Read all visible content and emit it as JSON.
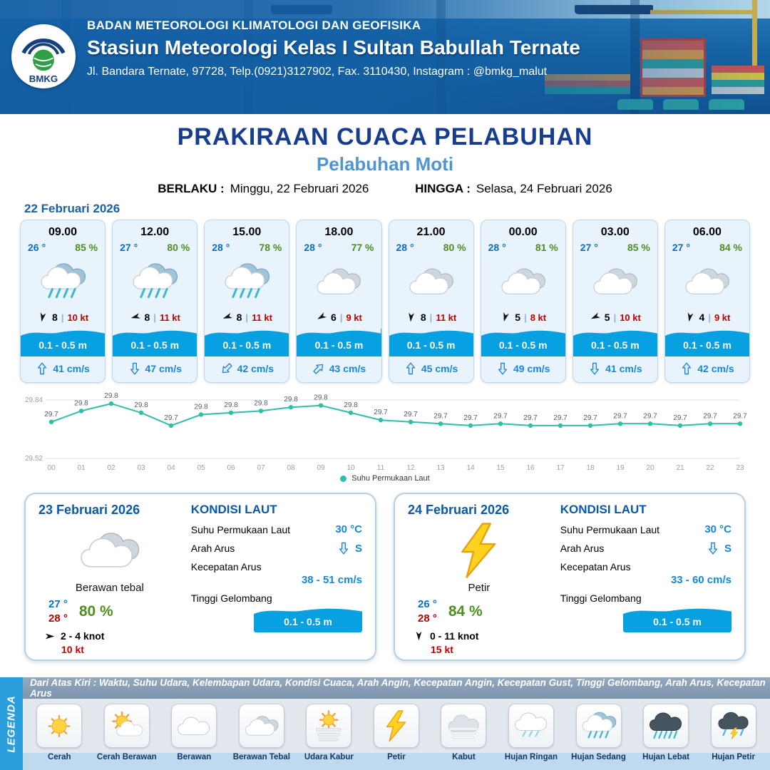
{
  "header": {
    "org": "BADAN METEOROLOGI KLIMATOLOGI DAN GEOFISIKA",
    "station": "Stasiun Meteorologi Kelas I Sultan Babullah Ternate",
    "address": "Jl. Bandara Ternate, 97728, Telp.(0921)3127902, Fax. 3110430, Instagram : @bmkg_malut",
    "logo_text": "BMKG"
  },
  "title": {
    "main": "PRAKIRAAN CUACA PELABUHAN",
    "sub": "Pelabuhan Moti",
    "berlaku_label": "BERLAKU :",
    "berlaku_value": "Minggu, 22 Februari 2026",
    "hingga_label": "HINGGA :",
    "hingga_value": "Selasa, 24 Februari 2026"
  },
  "hourly": {
    "date": "22 Februari 2026",
    "cards": [
      {
        "time": "09.00",
        "temp": "26 °",
        "hum": "85 %",
        "icon": "rain-mid",
        "wind_deg": 190,
        "wind_val": "8",
        "wind_kt": "10 kt",
        "wave": "0.1 - 0.5 m",
        "cur_deg": 0,
        "cur": "41 cm/s"
      },
      {
        "time": "12.00",
        "temp": "27 °",
        "hum": "80 %",
        "icon": "rain-mid",
        "wind_deg": 255,
        "wind_val": "8",
        "wind_kt": "11 kt",
        "wave": "0.1 - 0.5 m",
        "cur_deg": 180,
        "cur": "47 cm/s"
      },
      {
        "time": "15.00",
        "temp": "28 °",
        "hum": "78 %",
        "icon": "rain-mid",
        "wind_deg": 250,
        "wind_val": "8",
        "wind_kt": "11 kt",
        "wave": "0.1 - 0.5 m",
        "cur_deg": 225,
        "cur": "42 cm/s"
      },
      {
        "time": "18.00",
        "temp": "28 °",
        "hum": "77 %",
        "icon": "cloud-thick",
        "wind_deg": 240,
        "wind_val": "6",
        "wind_kt": "9 kt",
        "wave": "0.1 - 0.5 m",
        "cur_deg": 45,
        "cur": "43 cm/s"
      },
      {
        "time": "21.00",
        "temp": "28 °",
        "hum": "80 %",
        "icon": "cloud-thick",
        "wind_deg": 185,
        "wind_val": "8",
        "wind_kt": "11 kt",
        "wave": "0.1 - 0.5 m",
        "cur_deg": 0,
        "cur": "45 cm/s"
      },
      {
        "time": "00.00",
        "temp": "28 °",
        "hum": "81 %",
        "icon": "cloud-thick",
        "wind_deg": 195,
        "wind_val": "5",
        "wind_kt": "8 kt",
        "wave": "0.1 - 0.5 m",
        "cur_deg": 180,
        "cur": "49 cm/s"
      },
      {
        "time": "03.00",
        "temp": "27 °",
        "hum": "85 %",
        "icon": "cloud-thick",
        "wind_deg": 245,
        "wind_val": "5",
        "wind_kt": "10 kt",
        "wave": "0.1 - 0.5 m",
        "cur_deg": 180,
        "cur": "41 cm/s"
      },
      {
        "time": "06.00",
        "temp": "27 °",
        "hum": "84 %",
        "icon": "cloud-thick",
        "wind_deg": 190,
        "wind_val": "4",
        "wind_kt": "9 kt",
        "wave": "0.1 - 0.5 m",
        "cur_deg": 0,
        "cur": "42 cm/s"
      }
    ]
  },
  "chart_data": {
    "type": "line",
    "series_name": "Suhu Permukaan Laut",
    "x": [
      "00",
      "01",
      "02",
      "03",
      "04",
      "05",
      "06",
      "07",
      "08",
      "09",
      "10",
      "11",
      "12",
      "13",
      "14",
      "15",
      "16",
      "17",
      "18",
      "19",
      "20",
      "21",
      "22",
      "23"
    ],
    "value_labels": [
      "29.7",
      "29.8",
      "29.8",
      "29.8",
      "29.7",
      "29.8",
      "29.8",
      "29.8",
      "29.8",
      "29.8",
      "29.8",
      "29.7",
      "29.7",
      "29.7",
      "29.7",
      "29.7",
      "29.7",
      "29.7",
      "29.7",
      "29.7",
      "29.7",
      "29.7",
      "29.7",
      "29.7"
    ],
    "values_plot": [
      29.72,
      29.78,
      29.82,
      29.77,
      29.7,
      29.76,
      29.77,
      29.78,
      29.8,
      29.81,
      29.77,
      29.73,
      29.72,
      29.71,
      29.7,
      29.71,
      29.7,
      29.7,
      29.7,
      29.71,
      29.71,
      29.7,
      29.71,
      29.71
    ],
    "ylim": [
      29.52,
      29.84
    ],
    "xlabel": "",
    "ylabel": "",
    "legend_position": "bottom",
    "color": "#2fbfa8"
  },
  "daily": [
    {
      "date": "23 Februari 2026",
      "icon": "cloud-thick",
      "cond": "Berawan tebal",
      "tmin": "27 °",
      "tmax": "28 °",
      "hum": "80 %",
      "wind_deg": 90,
      "wind": "2  - 4 knot",
      "gust": "10 kt",
      "sea_title": "KONDISI LAUT",
      "sst_label": "Suhu Permukaan Laut",
      "sst": "30 °C",
      "arus_label": "Arah Arus",
      "arus_deg": 180,
      "arus_dir": "S",
      "kec_label": "Kecepatan Arus",
      "kec": "38  - 51 cm/s",
      "gel_label": "Tinggi Gelombang",
      "gel": "0.1 - 0.5 m"
    },
    {
      "date": "24 Februari 2026",
      "icon": "lightning",
      "cond": "Petir",
      "tmin": "26 °",
      "tmax": "28 °",
      "hum": "84 %",
      "wind_deg": 180,
      "wind": "0  - 11 knot",
      "gust": "15 kt",
      "sea_title": "KONDISI LAUT",
      "sst_label": "Suhu Permukaan Laut",
      "sst": "30 °C",
      "arus_label": "Arah Arus",
      "arus_deg": 180,
      "arus_dir": "S",
      "kec_label": "Kecepatan Arus",
      "kec": "33  - 60 cm/s",
      "gel_label": "Tinggi Gelombang",
      "gel": "0.1 - 0.5 m"
    }
  ],
  "legend": {
    "side": "LEGENDA",
    "caption": "Dari Atas Kiri : Waktu, Suhu Udara, Kelembapan Udara, Kondisi Cuaca, Arah Angin, Kecepatan Angin, Kecepatan Gust, Tinggi Gelombang, Arah Arus, Kecepatan Arus",
    "items": [
      {
        "label": "Cerah",
        "icon": "sun"
      },
      {
        "label": "Cerah Berawan",
        "icon": "sun-cloud"
      },
      {
        "label": "Berawan",
        "icon": "cloud"
      },
      {
        "label": "Berawan Tebal",
        "icon": "cloud-thick"
      },
      {
        "label": "Udara Kabur",
        "icon": "haze"
      },
      {
        "label": "Petir",
        "icon": "lightning"
      },
      {
        "label": "Kabut",
        "icon": "fog"
      },
      {
        "label": "Hujan Ringan",
        "icon": "rain-light"
      },
      {
        "label": "Hujan Sedang",
        "icon": "rain-mid"
      },
      {
        "label": "Hujan Lebat",
        "icon": "rain-heavy"
      },
      {
        "label": "Hujan Petir",
        "icon": "storm"
      }
    ]
  }
}
